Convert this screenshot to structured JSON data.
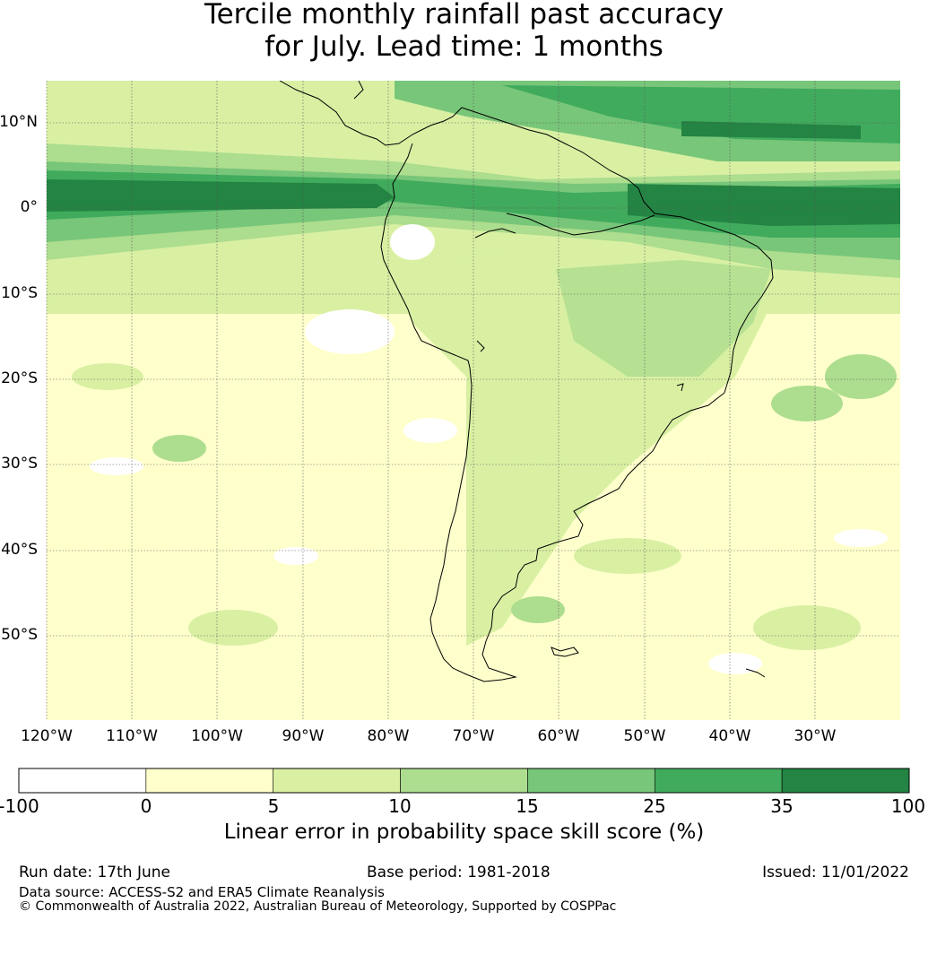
{
  "title": {
    "line1": "Tercile monthly rainfall past accuracy",
    "line2": "for July. Lead time: 1 months"
  },
  "map": {
    "lat_labels": [
      "10°N",
      "0°",
      "10°S",
      "20°S",
      "30°S",
      "40°S",
      "50°S"
    ],
    "lon_labels": [
      "120°W",
      "110°W",
      "100°W",
      "90°W",
      "80°W",
      "70°W",
      "60°W",
      "50°W",
      "40°W",
      "30°W"
    ],
    "colors": [
      "#ffffff",
      "#ffffcc",
      "#d9f0a3",
      "#addd8e",
      "#78c679",
      "#41ab5d",
      "#238443"
    ]
  },
  "colorbar": {
    "ticks": [
      "-100",
      "0",
      "5",
      "10",
      "15",
      "25",
      "35",
      "100"
    ],
    "colors": [
      "#ffffff",
      "#ffffcc",
      "#d9f0a3",
      "#addd8e",
      "#78c679",
      "#41ab5d",
      "#238443"
    ],
    "label": "Linear error in probability space skill score (%)"
  },
  "footer": {
    "run_date": "Run date: 17th June",
    "base_period": "Base period: 1981-2018",
    "issued": "Issued: 11/01/2022",
    "data_source": "Data source: ACCESS-S2 and ERA5 Climate Reanalysis",
    "copyright": "© Commonwealth of Australia 2022, Australian Bureau of Meteorology, Supported by COSPPac"
  }
}
